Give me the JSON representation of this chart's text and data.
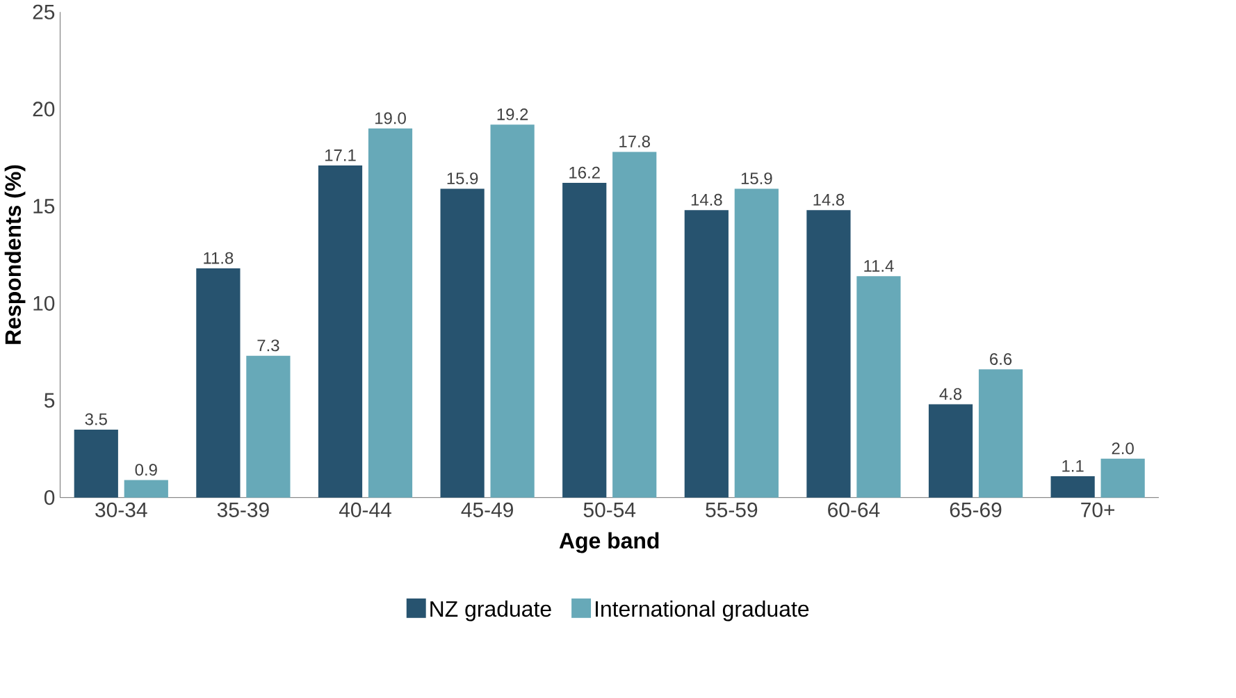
{
  "chart_data": {
    "type": "bar",
    "xlabel": "Age band",
    "ylabel": "Respondents (%)",
    "categories": [
      "30-34",
      "35-39",
      "40-44",
      "45-49",
      "50-54",
      "55-59",
      "60-64",
      "65-69",
      "70+"
    ],
    "series": [
      {
        "name": "NZ graduate",
        "color": "#27536f",
        "values": [
          3.5,
          11.8,
          17.1,
          15.9,
          16.2,
          14.8,
          14.8,
          4.8,
          1.1
        ],
        "value_labels": [
          "3.5",
          "11.8",
          "17.1",
          "15.9",
          "16.2",
          "14.8",
          "14.8",
          "4.8",
          "1.1"
        ]
      },
      {
        "name": "International graduate",
        "color": "#67a9b8",
        "values": [
          0.9,
          7.3,
          19.0,
          19.2,
          17.8,
          15.9,
          11.4,
          6.6,
          2.0
        ],
        "value_labels": [
          "0.9",
          "7.3",
          "19.0",
          "19.2",
          "17.8",
          "15.9",
          "11.4",
          "6.6",
          "2.0"
        ]
      }
    ],
    "ylim": [
      0,
      25
    ],
    "yticks": [
      0,
      5,
      10,
      15,
      20,
      25
    ],
    "grid": false,
    "legend": "bottom"
  }
}
